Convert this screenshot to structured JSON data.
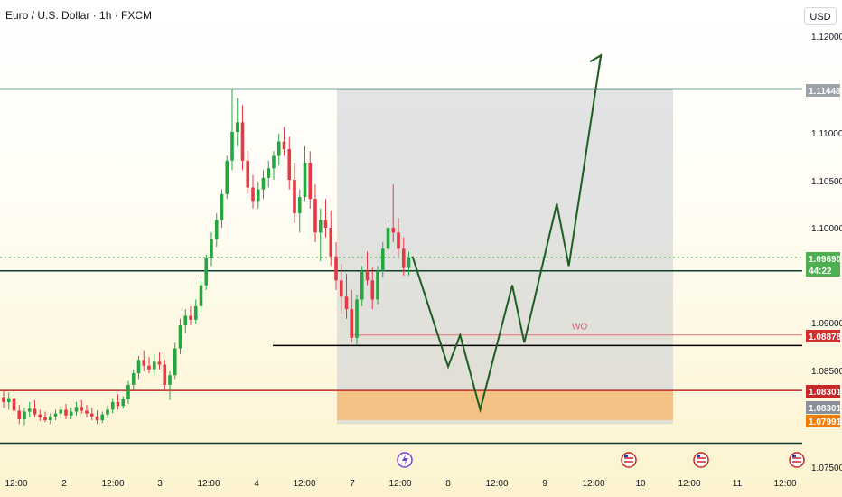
{
  "header": {
    "title": "Euro / U.S. Dollar · 1h · FXCM",
    "currency": "USD"
  },
  "chart_data": {
    "type": "candlestick",
    "symbol": "Euro / U.S. Dollar",
    "interval": "1h",
    "source": "FXCM",
    "y_ticks": [
      "1.12000",
      "1.11000",
      "1.10500",
      "1.10000",
      "1.09000",
      "1.08500",
      "1.07500"
    ],
    "x_ticks": [
      "12:00",
      "2",
      "12:00",
      "3",
      "12:00",
      "4",
      "12:00",
      "7",
      "12:00",
      "8",
      "12:00",
      "9",
      "12:00",
      "10",
      "12:00",
      "11",
      "12:00"
    ],
    "price_labels": [
      {
        "value": "1.11448",
        "color": "#9ea3ab"
      },
      {
        "value": "1.09690",
        "color": "#4caf50"
      },
      {
        "value": "44:22",
        "color": "#4caf50"
      },
      {
        "value": "1.08878",
        "color": "#d32f2f"
      },
      {
        "value": "1.08301",
        "color": "#c62828"
      },
      {
        "value": "1.08301",
        "color": "#8a8f98"
      },
      {
        "value": "1.07991",
        "color": "#f57c00"
      }
    ],
    "horizontal_levels": [
      {
        "price": 1.11448,
        "color": "#0b3d2e",
        "style": "solid"
      },
      {
        "price": 1.0955,
        "color": "#0b3d2e",
        "style": "solid"
      },
      {
        "price": 1.0877,
        "color": "#000000",
        "style": "solid",
        "partial": true
      },
      {
        "price": 1.08301,
        "color": "#c62828",
        "style": "solid"
      },
      {
        "price": 1.0775,
        "color": "#0b3d2e",
        "style": "solid"
      },
      {
        "price": 1.0969,
        "color": "#4caf50",
        "style": "dotted"
      }
    ],
    "zones": [
      {
        "name": "projection-box",
        "top": 1.11448,
        "bottom": 1.0795,
        "color": "#c8ccd2"
      },
      {
        "name": "demand-zone",
        "top": 1.08301,
        "bottom": 1.07991,
        "color": "#f8b96a"
      }
    ],
    "annotation": {
      "text": "WO",
      "price": 1.0889,
      "color": "#d06070"
    },
    "projection_path": [
      [
        1.097,
        "7 15:00"
      ],
      [
        1.0855,
        "8 00:00"
      ],
      [
        1.0888,
        "8 03:00"
      ],
      [
        1.081,
        "8 08:00"
      ],
      [
        1.094,
        "8 16:00"
      ],
      [
        1.088,
        "8 19:00"
      ],
      [
        1.1025,
        "9 03:00"
      ],
      [
        1.096,
        "9 06:00"
      ],
      [
        1.118,
        "9 14:00"
      ]
    ],
    "candles": [
      [
        1.0823,
        1.083,
        1.0812,
        1.0818
      ],
      [
        1.0818,
        1.0828,
        1.081,
        1.0822
      ],
      [
        1.0822,
        1.0826,
        1.0805,
        1.0809
      ],
      [
        1.0809,
        1.0815,
        1.0795,
        1.08
      ],
      [
        1.08,
        1.0812,
        1.0794,
        1.0808
      ],
      [
        1.0808,
        1.0818,
        1.0802,
        1.0811
      ],
      [
        1.0811,
        1.082,
        1.0802,
        1.0805
      ],
      [
        1.0805,
        1.081,
        1.0798,
        1.0802
      ],
      [
        1.0802,
        1.0808,
        1.0797,
        1.0799
      ],
      [
        1.0799,
        1.0806,
        1.0795,
        1.0803
      ],
      [
        1.0803,
        1.081,
        1.0799,
        1.0806
      ],
      [
        1.0806,
        1.0814,
        1.0801,
        1.081
      ],
      [
        1.081,
        1.0816,
        1.08,
        1.0804
      ],
      [
        1.0804,
        1.0812,
        1.08,
        1.0808
      ],
      [
        1.0808,
        1.0818,
        1.0804,
        1.0813
      ],
      [
        1.0813,
        1.082,
        1.0806,
        1.0809
      ],
      [
        1.0809,
        1.0815,
        1.0802,
        1.0806
      ],
      [
        1.0806,
        1.0812,
        1.0799,
        1.0803
      ],
      [
        1.0803,
        1.0809,
        1.0795,
        1.0799
      ],
      [
        1.0799,
        1.0808,
        1.0796,
        1.0805
      ],
      [
        1.0805,
        1.0814,
        1.0801,
        1.081
      ],
      [
        1.081,
        1.0822,
        1.0806,
        1.0818
      ],
      [
        1.0818,
        1.0826,
        1.081,
        1.0814
      ],
      [
        1.0814,
        1.0824,
        1.0811,
        1.0821
      ],
      [
        1.0821,
        1.084,
        1.0816,
        1.0836
      ],
      [
        1.0836,
        1.0852,
        1.083,
        1.0848
      ],
      [
        1.0848,
        1.0866,
        1.0842,
        1.0862
      ],
      [
        1.0862,
        1.0872,
        1.085,
        1.0856
      ],
      [
        1.0856,
        1.0865,
        1.0848,
        1.0852
      ],
      [
        1.0852,
        1.0868,
        1.0845,
        1.086
      ],
      [
        1.086,
        1.087,
        1.0852,
        1.0857
      ],
      [
        1.0857,
        1.0862,
        1.083,
        1.0836
      ],
      [
        1.0836,
        1.085,
        1.082,
        1.0846
      ],
      [
        1.0846,
        1.088,
        1.0842,
        1.0874
      ],
      [
        1.0874,
        1.0905,
        1.0868,
        1.0898
      ],
      [
        1.0898,
        1.0915,
        1.089,
        1.0908
      ],
      [
        1.0908,
        1.0918,
        1.0898,
        1.0904
      ],
      [
        1.0904,
        1.0925,
        1.09,
        1.0918
      ],
      [
        1.0918,
        1.0945,
        1.0912,
        1.094
      ],
      [
        1.094,
        1.0972,
        1.0935,
        1.0968
      ],
      [
        1.0968,
        1.0995,
        1.096,
        1.0988
      ],
      [
        1.0988,
        1.1015,
        1.098,
        1.1008
      ],
      [
        1.1008,
        1.104,
        1.1,
        1.1035
      ],
      [
        1.1035,
        1.1075,
        1.103,
        1.107
      ],
      [
        1.107,
        1.1145,
        1.106,
        1.11
      ],
      [
        1.11,
        1.1135,
        1.1085,
        1.111
      ],
      [
        1.111,
        1.1128,
        1.106,
        1.107
      ],
      [
        1.107,
        1.108,
        1.1035,
        1.1042
      ],
      [
        1.1042,
        1.1055,
        1.102,
        1.1028
      ],
      [
        1.1028,
        1.1048,
        1.102,
        1.104
      ],
      [
        1.104,
        1.106,
        1.103,
        1.1052
      ],
      [
        1.1052,
        1.107,
        1.1042,
        1.1062
      ],
      [
        1.1062,
        1.108,
        1.105,
        1.1075
      ],
      [
        1.1075,
        1.1098,
        1.1065,
        1.109
      ],
      [
        1.109,
        1.1105,
        1.1075,
        1.1082
      ],
      [
        1.1082,
        1.1095,
        1.104,
        1.105
      ],
      [
        1.105,
        1.1068,
        1.1005,
        1.1015
      ],
      [
        1.1015,
        1.104,
        1.0995,
        1.1032
      ],
      [
        1.1032,
        1.1085,
        1.1028,
        1.1068
      ],
      [
        1.1068,
        1.108,
        1.102,
        1.103
      ],
      [
        1.103,
        1.1045,
        1.0985,
        1.0995
      ],
      [
        1.0995,
        1.102,
        1.0965,
        1.1008
      ],
      [
        1.1008,
        1.103,
        1.099,
        1.1
      ],
      [
        1.1,
        1.1018,
        1.096,
        1.097
      ],
      [
        1.097,
        1.0985,
        1.0935,
        1.0945
      ],
      [
        1.0945,
        1.0962,
        1.091,
        1.0928
      ],
      [
        1.0928,
        1.0952,
        1.0905,
        1.0915
      ],
      [
        1.0915,
        1.0935,
        1.088,
        1.0885
      ],
      [
        1.0885,
        1.093,
        1.0878,
        1.0925
      ],
      [
        1.0925,
        1.096,
        1.0918,
        1.0955
      ],
      [
        1.0955,
        1.0975,
        1.094,
        1.0945
      ],
      [
        1.0945,
        1.0958,
        1.0915,
        1.0925
      ],
      [
        1.0925,
        1.096,
        1.092,
        1.0955
      ],
      [
        1.0955,
        1.0985,
        1.0948,
        1.0978
      ],
      [
        1.0978,
        1.1008,
        1.097,
        1.1
      ],
      [
        1.1,
        1.1045,
        1.0985,
        1.0995
      ],
      [
        1.0995,
        1.101,
        1.097,
        1.0978
      ],
      [
        1.0978,
        1.099,
        1.095,
        1.0958
      ],
      [
        1.0958,
        1.0975,
        1.095,
        1.0969
      ]
    ]
  }
}
